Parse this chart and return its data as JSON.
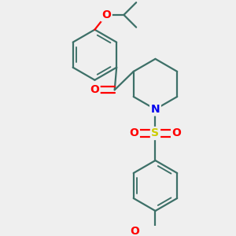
{
  "bg_color": "#efefef",
  "bond_color": "#3d7068",
  "bond_width": 1.6,
  "atom_colors": {
    "O": "#ff0000",
    "N": "#0000ee",
    "S": "#cccc00",
    "C": "#3d7068"
  },
  "font_size": 10,
  "fig_size": [
    3.0,
    3.0
  ],
  "dpi": 100
}
